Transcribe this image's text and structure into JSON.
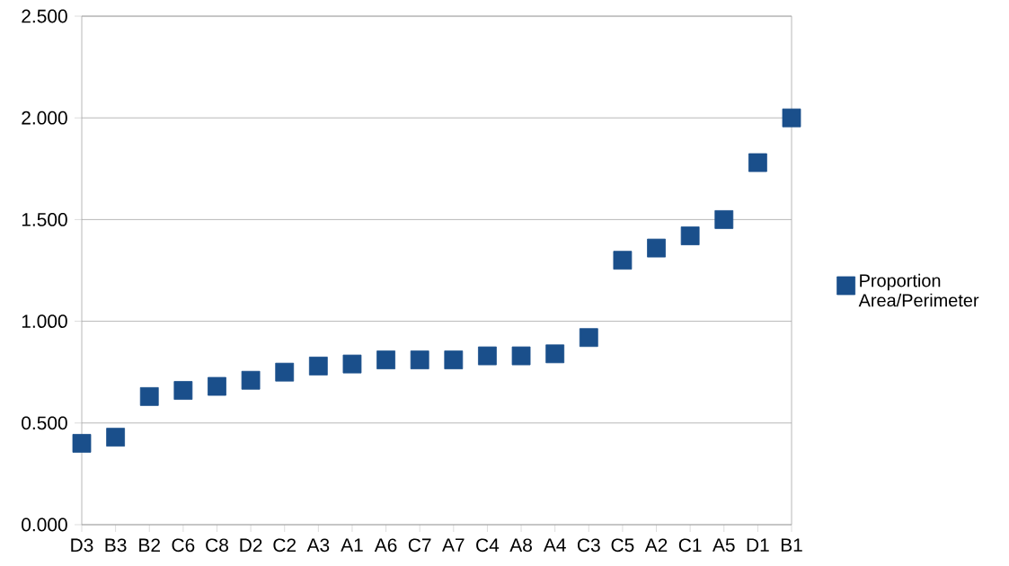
{
  "chart_data": {
    "type": "scatter",
    "categories": [
      "D3",
      "B3",
      "B2",
      "C6",
      "C8",
      "D2",
      "C2",
      "A3",
      "A1",
      "A6",
      "C7",
      "A7",
      "C4",
      "A8",
      "A4",
      "C3",
      "C5",
      "A2",
      "C1",
      "A5",
      "D1",
      "B1"
    ],
    "series": [
      {
        "name": "Proportion Area/Perimeter",
        "color": "#1a4f8b",
        "values": [
          0.4,
          0.43,
          0.63,
          0.66,
          0.68,
          0.71,
          0.75,
          0.78,
          0.79,
          0.81,
          0.81,
          0.81,
          0.83,
          0.83,
          0.84,
          0.92,
          1.3,
          1.36,
          1.42,
          1.5,
          1.78,
          2.0
        ]
      }
    ],
    "ylim": [
      0,
      2.5
    ],
    "yticks": [
      {
        "value": 0,
        "label": "0.000"
      },
      {
        "value": 0.5,
        "label": "0.500"
      },
      {
        "value": 1,
        "label": "1.000"
      },
      {
        "value": 1.5,
        "label": "1.500"
      },
      {
        "value": 2,
        "label": "2.000"
      },
      {
        "value": 2.5,
        "label": "2.500"
      }
    ],
    "grid": "y",
    "legend": "right",
    "marker": "square"
  }
}
